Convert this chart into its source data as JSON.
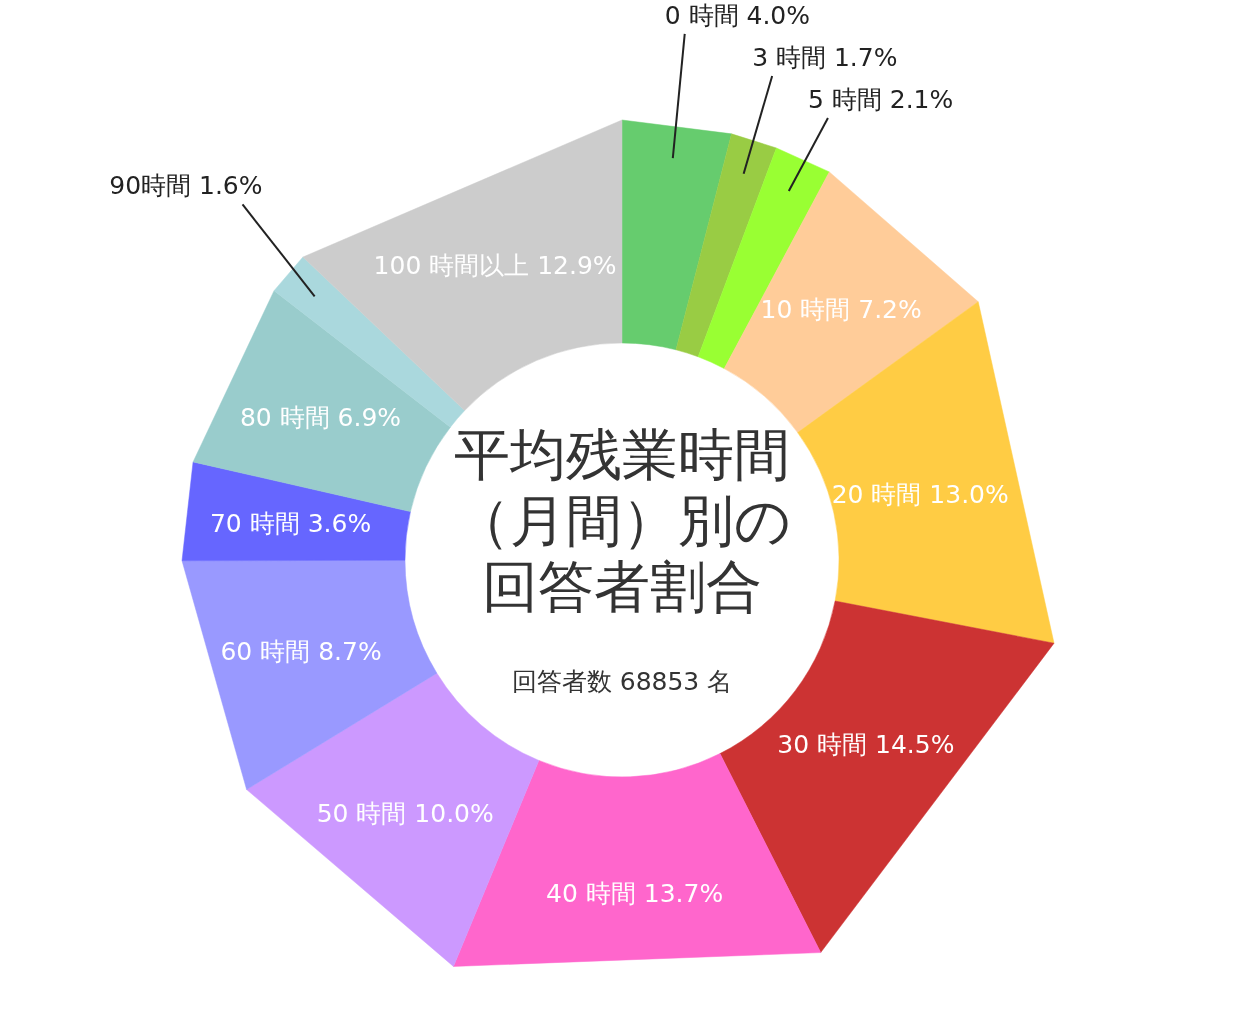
{
  "chart_data": {
    "type": "donut",
    "title": "平均残業時間（月間）別の回答者割合",
    "subtitle": "回答者数 68853 名",
    "categories": [
      "0 時間",
      "3 時間",
      "5 時間",
      "10 時間",
      "20 時間",
      "30 時間",
      "40 時間",
      "50 時間",
      "60 時間",
      "70 時間",
      "80 時間",
      "90時間",
      "100 時間以上"
    ],
    "values": [
      4.0,
      1.7,
      2.1,
      7.2,
      13.0,
      14.5,
      13.7,
      10.0,
      8.7,
      3.6,
      6.9,
      1.6,
      12.9
    ],
    "value_labels": [
      "4.0%",
      "1.7%",
      "2.1%",
      "7.2%",
      "13.0%",
      "14.5%",
      "13.7%",
      "10.0%",
      "8.7%",
      "3.6%",
      "6.9%",
      "1.6%",
      "12.9%"
    ],
    "colors": [
      "#66cc6e",
      "#99cc44",
      "#99ff33",
      "#ffcc99",
      "#ffcc44",
      "#cc3333",
      "#ff66cc",
      "#cc99ff",
      "#9999ff",
      "#6666ff",
      "#99cccc",
      "#aad8dd",
      "#cccccc"
    ]
  }
}
